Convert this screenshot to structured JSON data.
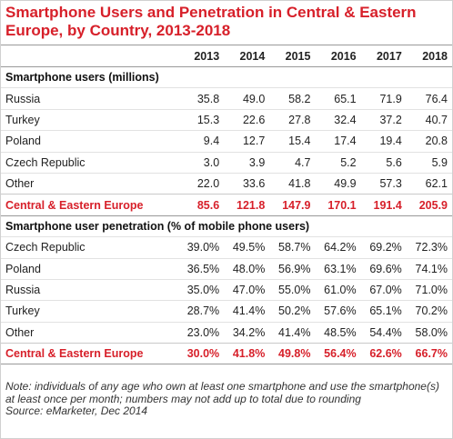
{
  "chart_data": {
    "type": "table",
    "title": "Smartphone Users and Penetration in Central & Eastern Europe, by Country, 2013-2018",
    "columns": [
      "2013",
      "2014",
      "2015",
      "2016",
      "2017",
      "2018"
    ],
    "sections": [
      {
        "heading": "Smartphone users (millions)",
        "rows": [
          {
            "label": "Russia",
            "values": [
              "35.8",
              "49.0",
              "58.2",
              "65.1",
              "71.9",
              "76.4"
            ]
          },
          {
            "label": "Turkey",
            "values": [
              "15.3",
              "22.6",
              "27.8",
              "32.4",
              "37.2",
              "40.7"
            ]
          },
          {
            "label": "Poland",
            "values": [
              "9.4",
              "12.7",
              "15.4",
              "17.4",
              "19.4",
              "20.8"
            ]
          },
          {
            "label": "Czech Republic",
            "values": [
              "3.0",
              "3.9",
              "4.7",
              "5.2",
              "5.6",
              "5.9"
            ]
          },
          {
            "label": "Other",
            "values": [
              "22.0",
              "33.6",
              "41.8",
              "49.9",
              "57.3",
              "62.1"
            ]
          }
        ],
        "total": {
          "label": "Central & Eastern Europe",
          "values": [
            "85.6",
            "121.8",
            "147.9",
            "170.1",
            "191.4",
            "205.9"
          ]
        }
      },
      {
        "heading": "Smartphone user penetration (% of mobile phone users)",
        "rows": [
          {
            "label": "Czech Republic",
            "values": [
              "39.0%",
              "49.5%",
              "58.7%",
              "64.2%",
              "69.2%",
              "72.3%"
            ]
          },
          {
            "label": "Poland",
            "values": [
              "36.5%",
              "48.0%",
              "56.9%",
              "63.1%",
              "69.6%",
              "74.1%"
            ]
          },
          {
            "label": "Russia",
            "values": [
              "35.0%",
              "47.0%",
              "55.0%",
              "61.0%",
              "67.0%",
              "71.0%"
            ]
          },
          {
            "label": "Turkey",
            "values": [
              "28.7%",
              "41.4%",
              "50.2%",
              "57.6%",
              "65.1%",
              "70.2%"
            ]
          },
          {
            "label": "Other",
            "values": [
              "23.0%",
              "34.2%",
              "41.4%",
              "48.5%",
              "54.4%",
              "58.0%"
            ]
          }
        ],
        "total": {
          "label": "Central & Eastern Europe",
          "values": [
            "30.0%",
            "41.8%",
            "49.8%",
            "56.4%",
            "62.6%",
            "66.7%"
          ]
        }
      }
    ],
    "note": "Note: individuals of any age who own at least one smartphone and use the smartphone(s) at least once per month; numbers may not add up to total due to rounding",
    "source": "Source: eMarketer, Dec 2014"
  },
  "colors": {
    "accent": "#d7202a"
  }
}
